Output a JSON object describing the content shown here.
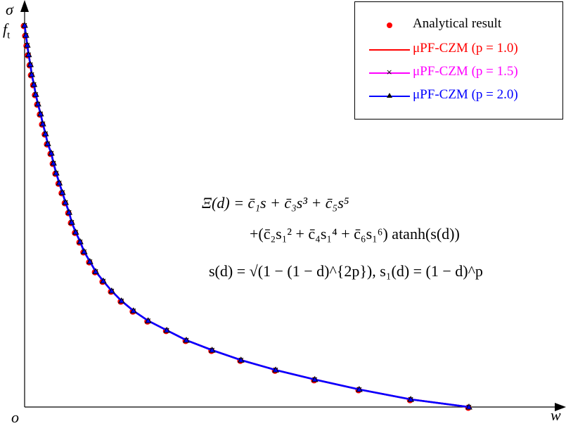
{
  "chart_data": {
    "type": "line",
    "xlabel": "w",
    "ylabel": "σ",
    "y_tick_label": "f_t",
    "origin_label": "o",
    "xlim": [
      0,
      1.22
    ],
    "ylim": [
      0,
      1.06
    ],
    "grid": false,
    "legend_placement": "top-right",
    "x": [
      0,
      0.003,
      0.006,
      0.009,
      0.013,
      0.016,
      0.021,
      0.025,
      0.03,
      0.036,
      0.041,
      0.047,
      0.052,
      0.06,
      0.065,
      0.071,
      0.078,
      0.085,
      0.092,
      0.1,
      0.106,
      0.115,
      0.125,
      0.134,
      0.147,
      0.16,
      0.177,
      0.196,
      0.218,
      0.245,
      0.278,
      0.32,
      0.364,
      0.422,
      0.487,
      0.565,
      0.653,
      0.753,
      0.869,
      1.0
    ],
    "series": [
      {
        "name": "Analytical result",
        "style": "dots",
        "color": "#ff0000",
        "values": [
          1,
          0.974,
          0.948,
          0.923,
          0.897,
          0.871,
          0.845,
          0.819,
          0.794,
          0.768,
          0.742,
          0.716,
          0.69,
          0.665,
          0.639,
          0.613,
          0.587,
          0.562,
          0.536,
          0.51,
          0.484,
          0.458,
          0.433,
          0.407,
          0.381,
          0.355,
          0.33,
          0.304,
          0.278,
          0.252,
          0.226,
          0.201,
          0.175,
          0.149,
          0.123,
          0.097,
          0.072,
          0.046,
          0.02,
          0
        ]
      },
      {
        "name": "μPF-CZM (p = 1.0)",
        "style": "line",
        "color": "#ff0000",
        "values": [
          1,
          0.974,
          0.948,
          0.923,
          0.897,
          0.871,
          0.845,
          0.819,
          0.794,
          0.768,
          0.742,
          0.716,
          0.69,
          0.665,
          0.639,
          0.613,
          0.587,
          0.562,
          0.536,
          0.51,
          0.484,
          0.458,
          0.433,
          0.407,
          0.381,
          0.355,
          0.33,
          0.304,
          0.278,
          0.252,
          0.226,
          0.201,
          0.175,
          0.149,
          0.123,
          0.097,
          0.072,
          0.046,
          0.02,
          0
        ]
      },
      {
        "name": "μPF-CZM (p = 1.5)",
        "style": "line-x",
        "color": "#ff00ff",
        "values": [
          1,
          0.974,
          0.948,
          0.923,
          0.897,
          0.871,
          0.845,
          0.819,
          0.794,
          0.768,
          0.742,
          0.716,
          0.69,
          0.665,
          0.639,
          0.613,
          0.587,
          0.562,
          0.536,
          0.51,
          0.484,
          0.458,
          0.433,
          0.407,
          0.381,
          0.355,
          0.33,
          0.304,
          0.278,
          0.252,
          0.226,
          0.201,
          0.175,
          0.149,
          0.123,
          0.097,
          0.072,
          0.046,
          0.02,
          0
        ]
      },
      {
        "name": "μPF-CZM (p = 2.0)",
        "style": "line-triangle",
        "color": "#0000ff",
        "values": [
          1,
          0.974,
          0.948,
          0.923,
          0.897,
          0.871,
          0.845,
          0.819,
          0.794,
          0.768,
          0.742,
          0.716,
          0.69,
          0.665,
          0.639,
          0.613,
          0.587,
          0.562,
          0.536,
          0.51,
          0.484,
          0.458,
          0.433,
          0.407,
          0.381,
          0.355,
          0.33,
          0.304,
          0.278,
          0.252,
          0.226,
          0.201,
          0.175,
          0.149,
          0.123,
          0.097,
          0.072,
          0.046,
          0.02,
          0
        ]
      }
    ],
    "annotations": [
      "Ξ(d) = c̄₁s + c̄₃s³ + c̄₅s⁵",
      "+(c̄₂s₁² + c̄₄s₁⁴ + c̄₆s₁⁶) atanh(s(d))",
      "s(d) = √(1 − (1 − d)^{2p}),  s₁(d) = (1 − d)^p"
    ]
  }
}
